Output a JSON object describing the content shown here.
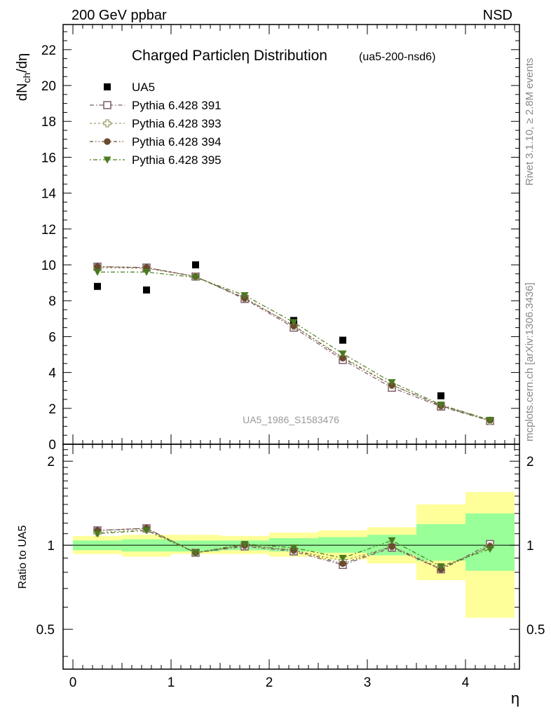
{
  "header": {
    "left": "200 GeV ppbar",
    "right": "NSD"
  },
  "side_labels": {
    "top": "Rivet 3.1.10, ≥ 2.8M events",
    "bottom": "mcplots.cern.ch [arXiv:1306.3436]"
  },
  "chart_data": [
    {
      "type": "scatter",
      "title": "Charged Particleη Distribution",
      "subtitle": "(ua5-200-nsd6)",
      "ylabel": "dN_ch/dη",
      "xlim": [
        -0.1,
        4.55
      ],
      "ylim": [
        0,
        23.4
      ],
      "yticks": [
        0,
        2,
        4,
        6,
        8,
        10,
        12,
        14,
        16,
        18,
        20,
        22
      ],
      "watermark": "UA5_1986_S1583476",
      "legend_position": "top-left",
      "x": [
        0.25,
        0.75,
        1.25,
        1.75,
        2.25,
        2.75,
        3.25,
        3.75,
        4.25
      ],
      "series": [
        {
          "name": "UA5",
          "marker": "square-filled",
          "color": "#000000",
          "values": [
            8.8,
            8.6,
            10.0,
            null,
            6.9,
            5.8,
            null,
            2.7,
            null
          ]
        },
        {
          "name": "Pythia 6.428 391",
          "marker": "square-open",
          "color": "#7a5a6a",
          "values": [
            9.9,
            9.85,
            9.35,
            8.1,
            6.5,
            4.7,
            3.15,
            2.1,
            1.3
          ]
        },
        {
          "name": "Pythia 6.428 393",
          "marker": "cross-open",
          "color": "#9a9a6a",
          "values": [
            9.85,
            9.8,
            9.35,
            8.15,
            6.6,
            4.85,
            3.3,
            2.15,
            1.3
          ]
        },
        {
          "name": "Pythia 6.428 394",
          "marker": "circle-filled",
          "color": "#6b4a2e",
          "values": [
            9.9,
            9.85,
            9.35,
            8.15,
            6.6,
            4.8,
            3.3,
            2.15,
            1.35
          ]
        },
        {
          "name": "Pythia 6.428 395",
          "marker": "triangle-down-filled",
          "color": "#4a7a1e",
          "values": [
            9.6,
            9.6,
            9.3,
            8.3,
            6.8,
            5.05,
            3.45,
            2.2,
            1.35
          ]
        }
      ]
    },
    {
      "type": "scatter",
      "ylabel": "Ratio to UA5",
      "xlabel": "η",
      "log_y": true,
      "xlim": [
        -0.1,
        4.55
      ],
      "ylim": [
        0.36,
        2.3
      ],
      "yticks": [
        0.5,
        1,
        2
      ],
      "xticks": [
        0,
        1,
        2,
        3,
        4
      ],
      "reference_line": 1,
      "bands": {
        "edges": [
          0,
          0.5,
          1,
          1.5,
          2,
          2.5,
          3,
          3.5,
          4,
          4.5
        ],
        "inner_color": "#99ff99",
        "outer_color": "#ffff99",
        "inner": [
          [
            0.96,
            1.04
          ],
          [
            0.95,
            1.05
          ],
          [
            0.95,
            1.04
          ],
          [
            0.96,
            1.04
          ],
          [
            0.95,
            1.06
          ],
          [
            0.94,
            1.07
          ],
          [
            0.92,
            1.09
          ],
          [
            0.88,
            1.19
          ],
          [
            0.81,
            1.3
          ]
        ],
        "outer": [
          [
            0.93,
            1.08
          ],
          [
            0.91,
            1.09
          ],
          [
            0.93,
            1.09
          ],
          [
            0.93,
            1.08
          ],
          [
            0.91,
            1.11
          ],
          [
            0.89,
            1.13
          ],
          [
            0.86,
            1.16
          ],
          [
            0.75,
            1.4
          ],
          [
            0.55,
            1.55
          ]
        ]
      },
      "x": [
        0.25,
        0.75,
        1.25,
        1.75,
        2.25,
        2.75,
        3.25,
        3.75,
        4.25
      ],
      "series": [
        {
          "name": "Pythia 6.428 391",
          "marker": "square-open",
          "color": "#7a5a6a",
          "values": [
            1.13,
            1.15,
            0.94,
            0.99,
            0.95,
            0.85,
            0.98,
            0.82,
            1.01
          ]
        },
        {
          "name": "Pythia 6.428 393",
          "marker": "cross-open",
          "color": "#9a9a6a",
          "values": [
            1.11,
            1.14,
            0.94,
            1.0,
            0.96,
            0.88,
            0.99,
            0.83,
            0.99
          ]
        },
        {
          "name": "Pythia 6.428 394",
          "marker": "circle-filled",
          "color": "#6b4a2e",
          "values": [
            1.13,
            1.15,
            0.94,
            1.0,
            0.96,
            0.86,
            0.99,
            0.82,
            0.99
          ]
        },
        {
          "name": "Pythia 6.428 395",
          "marker": "triangle-down-filled",
          "color": "#4a7a1e",
          "values": [
            1.1,
            1.13,
            0.94,
            1.01,
            0.98,
            0.9,
            1.04,
            0.84,
            0.97
          ]
        }
      ]
    }
  ]
}
